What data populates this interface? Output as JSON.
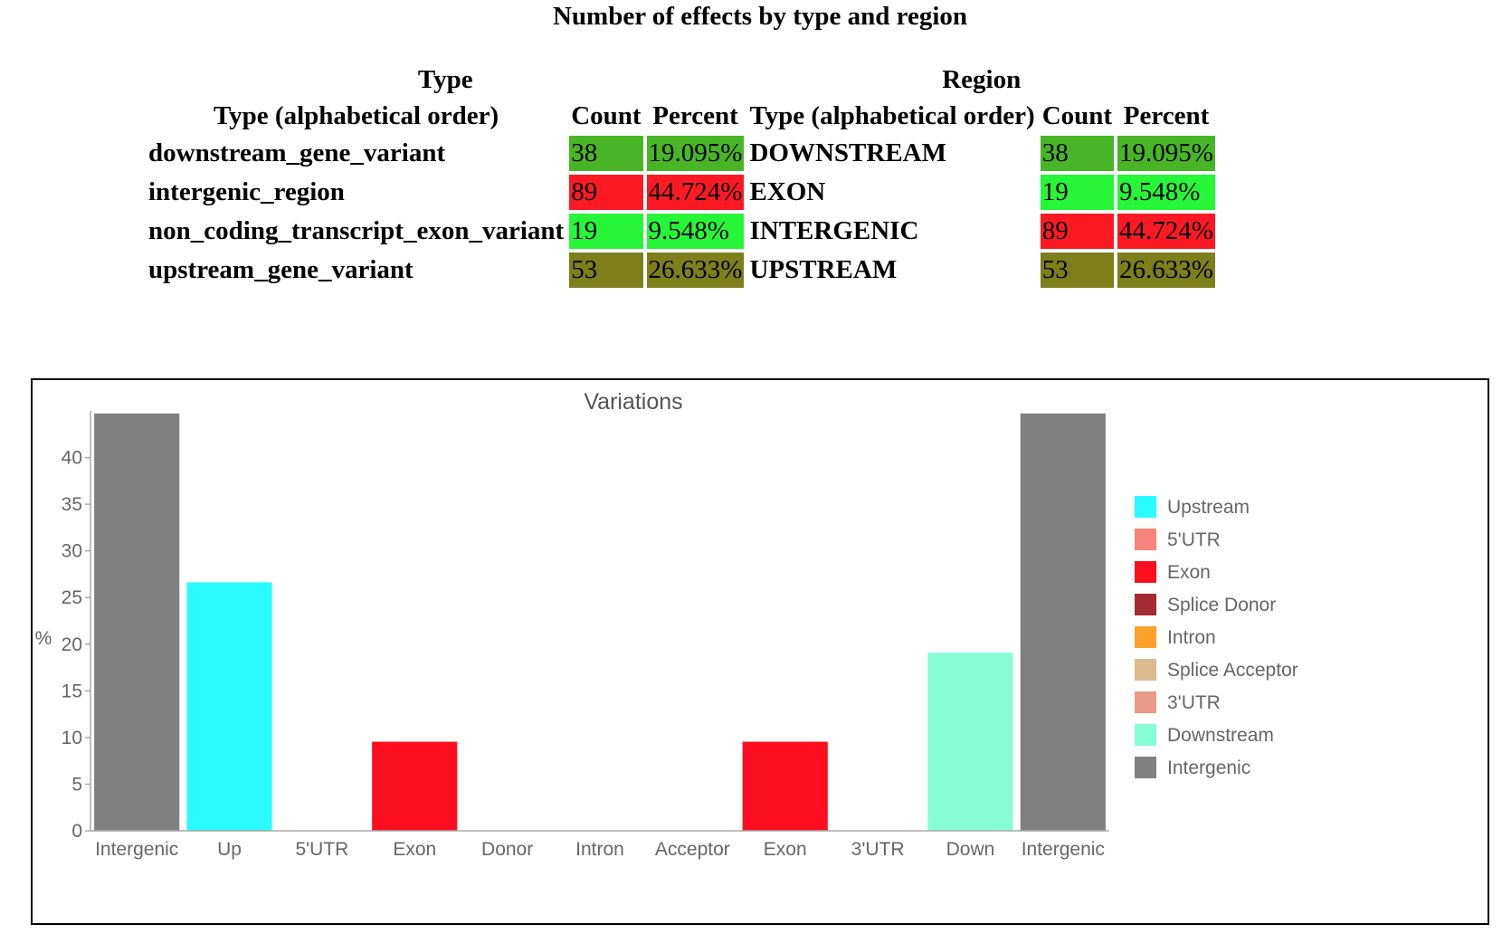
{
  "title": "Number of effects by type and region",
  "type_table": {
    "heading": "Type",
    "col_type": "Type (alphabetical order)",
    "col_count": "Count",
    "col_percent": "Percent",
    "rows": [
      {
        "type": "downstream_gene_variant",
        "count": "38",
        "percent": "19.095%",
        "color": "#48b527"
      },
      {
        "type": "intergenic_region",
        "count": "89",
        "percent": "44.724%",
        "color": "#fb1a24"
      },
      {
        "type": "non_coding_transcript_exon_variant",
        "count": "19",
        "percent": "9.548%",
        "color": "#26f538"
      },
      {
        "type": "upstream_gene_variant",
        "count": "53",
        "percent": "26.633%",
        "color": "#7d7f1b"
      }
    ]
  },
  "region_table": {
    "heading": "Region",
    "col_type": "Type (alphabetical order)",
    "col_count": "Count",
    "col_percent": "Percent",
    "rows": [
      {
        "type": "DOWNSTREAM",
        "count": "38",
        "percent": "19.095%",
        "color": "#48b527"
      },
      {
        "type": "EXON",
        "count": "19",
        "percent": "9.548%",
        "color": "#26f538"
      },
      {
        "type": "INTERGENIC",
        "count": "89",
        "percent": "44.724%",
        "color": "#fb1a24"
      },
      {
        "type": "UPSTREAM",
        "count": "53",
        "percent": "26.633%",
        "color": "#7d7f1b"
      }
    ]
  },
  "chart_data": {
    "type": "bar",
    "title": "Variations",
    "xlabel": "",
    "ylabel": "%",
    "ylim": [
      0,
      45
    ],
    "yticks": [
      0,
      5,
      10,
      15,
      20,
      25,
      30,
      35,
      40
    ],
    "grid": false,
    "legend_position": "right",
    "categories": [
      "Intergenic",
      "Up",
      "5'UTR",
      "Exon",
      "Donor",
      "Intron",
      "Acceptor",
      "Exon",
      "3'UTR",
      "Down",
      "Intergenic"
    ],
    "values": [
      44.724,
      26.633,
      0,
      9.548,
      0,
      0,
      0,
      9.548,
      0,
      19.095,
      44.724
    ],
    "bar_colors": [
      "#808080",
      "#2afbff",
      "#f7837a",
      "#fb0f1f",
      "#a32b31",
      "#fda02c",
      "#ddb98e",
      "#fb0f1f",
      "#ea9a86",
      "#87fdd5",
      "#808080"
    ],
    "legend": [
      {
        "name": "Upstream",
        "color": "#2afbff"
      },
      {
        "name": "5'UTR",
        "color": "#f7837a"
      },
      {
        "name": "Exon",
        "color": "#fb0f1f"
      },
      {
        "name": "Splice Donor",
        "color": "#a32b31"
      },
      {
        "name": "Intron",
        "color": "#fda02c"
      },
      {
        "name": "Splice Acceptor",
        "color": "#ddb98e"
      },
      {
        "name": "3'UTR",
        "color": "#ea9a86"
      },
      {
        "name": "Downstream",
        "color": "#87fdd5"
      },
      {
        "name": "Intergenic",
        "color": "#808080"
      }
    ]
  }
}
